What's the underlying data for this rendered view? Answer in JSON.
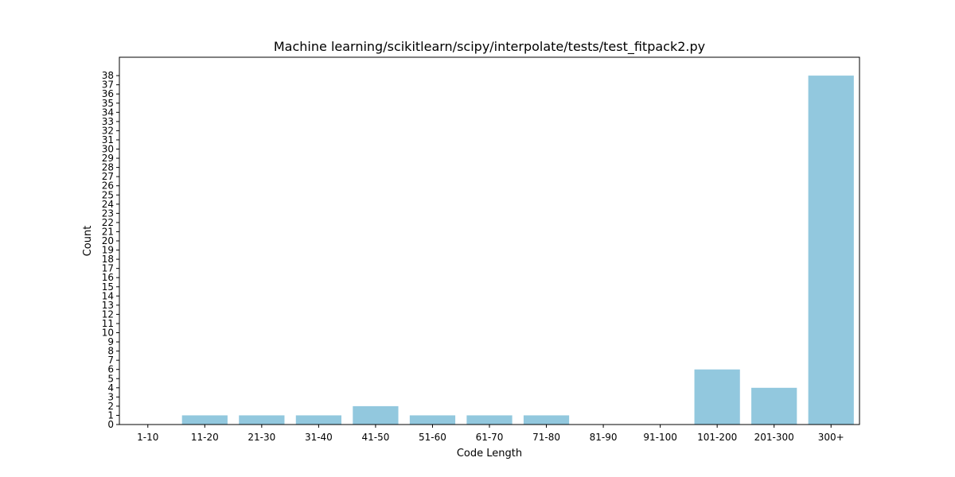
{
  "chart_data": {
    "type": "bar",
    "title": "Machine learning/scikitlearn/scipy/interpolate/tests/test_fitpack2.py",
    "xlabel": "Code Length",
    "ylabel": "Count",
    "categories": [
      "1-10",
      "11-20",
      "21-30",
      "31-40",
      "41-50",
      "51-60",
      "61-70",
      "71-80",
      "81-90",
      "91-100",
      "101-200",
      "201-300",
      "300+"
    ],
    "values": [
      0,
      1,
      1,
      1,
      2,
      1,
      1,
      1,
      0,
      0,
      6,
      4,
      38
    ],
    "ylim": [
      0,
      40
    ],
    "yticks": [
      0,
      1,
      2,
      3,
      4,
      5,
      6,
      7,
      8,
      9,
      10,
      11,
      12,
      13,
      14,
      15,
      16,
      17,
      18,
      19,
      20,
      21,
      22,
      23,
      24,
      25,
      26,
      27,
      28,
      29,
      30,
      31,
      32,
      33,
      34,
      35,
      36,
      37,
      38
    ],
    "grid": false,
    "legend": false,
    "bar_color": "#92c8de"
  }
}
